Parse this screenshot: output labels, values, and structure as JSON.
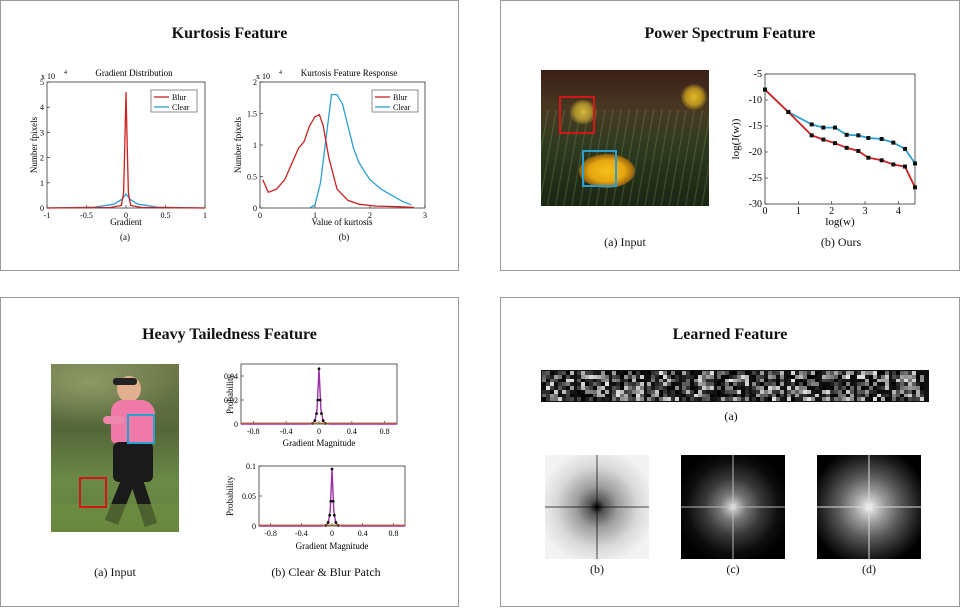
{
  "panels": {
    "kurtosis": {
      "title": "Kurtosis Feature",
      "chart_a": {
        "title": "Gradient Distribution",
        "xlabel": "Gradient",
        "ylabel": "Number fpixels",
        "scale": "x 10",
        "exp": "4",
        "xticks": [
          "-1",
          "-0.5",
          "0",
          "0.5",
          "1"
        ],
        "yticks": [
          "0",
          "1",
          "2",
          "3",
          "4",
          "5"
        ],
        "legend": [
          "Blur",
          "Clear"
        ],
        "caption": "(a)"
      },
      "chart_b": {
        "title": "Kurtosis Feature Response",
        "xlabel": "Value of kurtosis",
        "ylabel": "Number fpixels",
        "scale": "x 10",
        "exp": "4",
        "xticks": [
          "0",
          "1",
          "2",
          "3"
        ],
        "yticks": [
          "0",
          "0.5",
          "1",
          "1.5",
          "2"
        ],
        "legend": [
          "Blur",
          "Clear"
        ],
        "caption": "(b)"
      }
    },
    "power": {
      "title": "Power Spectrum Feature",
      "caption_a": "(a) Input",
      "caption_b": "(b) Ours",
      "chart": {
        "xlabel": "log(w)",
        "ylabel": "log(J(w))",
        "xticks": [
          "0",
          "1",
          "2",
          "3",
          "4"
        ],
        "yticks": [
          "-5",
          "-10",
          "-15",
          "-20",
          "-25",
          "-30"
        ]
      }
    },
    "heavy": {
      "title": "Heavy Tailedness Feature",
      "caption_a": "(a) Input",
      "caption_b": "(b) Clear & Blur Patch",
      "chart_top": {
        "xlabel": "Gradient Magnitude",
        "ylabel": "Probability",
        "xticks": [
          "-0.8",
          "-0.4",
          "0",
          "0.4",
          "0.8"
        ],
        "yticks": [
          "0",
          "0.02",
          "0.04"
        ]
      },
      "chart_bottom": {
        "xlabel": "Gradient Magnitude",
        "ylabel": "Probability",
        "xticks": [
          "-0.8",
          "-0.4",
          "0",
          "0.4",
          "0.8"
        ],
        "yticks": [
          "0",
          "0.05",
          "0.1"
        ]
      }
    },
    "learned": {
      "title": "Learned Feature",
      "caption_a": "(a)",
      "caption_b": "(b)",
      "caption_c": "(c)",
      "caption_d": "(d)"
    }
  },
  "colors": {
    "blur": "#cc1f1f",
    "clear": "#2a9fd0",
    "purple": "#9b2fa8"
  },
  "chart_data": [
    {
      "type": "line",
      "title": "Gradient Distribution",
      "xlabel": "Gradient",
      "ylabel": "Number fpixels",
      "xlim": [
        -1,
        1
      ],
      "ylim": [
        0,
        5
      ],
      "series": [
        {
          "name": "Blur",
          "x": [
            -1,
            -0.2,
            -0.06,
            -0.03,
            -0.015,
            0,
            0.015,
            0.03,
            0.06,
            0.2,
            1
          ],
          "y": [
            0,
            0.02,
            0.1,
            0.6,
            2.5,
            4.6,
            2.5,
            0.6,
            0.1,
            0.02,
            0
          ]
        },
        {
          "name": "Clear",
          "x": [
            -1,
            -0.4,
            -0.15,
            -0.05,
            0,
            0.05,
            0.15,
            0.4,
            1
          ],
          "y": [
            0,
            0.03,
            0.15,
            0.35,
            0.55,
            0.35,
            0.15,
            0.03,
            0
          ]
        }
      ]
    },
    {
      "type": "line",
      "title": "Kurtosis Feature Response",
      "xlabel": "Value of kurtosis",
      "ylabel": "Number fpixels",
      "xlim": [
        0,
        3
      ],
      "ylim": [
        0,
        2
      ],
      "series": [
        {
          "name": "Blur",
          "x": [
            0.05,
            0.15,
            0.3,
            0.45,
            0.6,
            0.7,
            0.8,
            0.9,
            1.0,
            1.08,
            1.15,
            1.25,
            1.4,
            1.6,
            1.8,
            2.1,
            2.5,
            2.8
          ],
          "y": [
            0.45,
            0.25,
            0.3,
            0.45,
            0.75,
            0.95,
            1.05,
            1.3,
            1.45,
            1.48,
            1.3,
            0.8,
            0.3,
            0.12,
            0.06,
            0.03,
            0.02,
            0.01
          ]
        },
        {
          "name": "Clear",
          "x": [
            0.9,
            1.0,
            1.1,
            1.2,
            1.3,
            1.4,
            1.5,
            1.6,
            1.7,
            1.8,
            1.9,
            2.0,
            2.2,
            2.4,
            2.6,
            2.75
          ],
          "y": [
            0.0,
            0.05,
            0.4,
            1.1,
            1.8,
            1.8,
            1.65,
            1.3,
            0.95,
            0.72,
            0.58,
            0.45,
            0.3,
            0.2,
            0.1,
            0.05
          ]
        }
      ]
    },
    {
      "type": "line",
      "xlabel": "log(w)",
      "ylabel": "log(J(w))",
      "xlim": [
        0,
        4.5
      ],
      "ylim": [
        -30,
        -5
      ],
      "series": [
        {
          "x": [
            0,
            0.7,
            1.4,
            1.75,
            2.1,
            2.45,
            2.8,
            3.1,
            3.5,
            3.85,
            4.2,
            4.5
          ],
          "y": [
            -8,
            -12.3,
            -14.7,
            -15.3,
            -15.3,
            -16.7,
            -16.8,
            -17.3,
            -17.5,
            -18.2,
            -19.4,
            -22.2
          ]
        },
        {
          "x": [
            0,
            0.7,
            1.4,
            1.75,
            2.1,
            2.45,
            2.8,
            3.1,
            3.5,
            3.85,
            4.2,
            4.5
          ],
          "y": [
            -8,
            -12.3,
            -16.8,
            -17.6,
            -18.3,
            -19.2,
            -19.8,
            -21.1,
            -21.6,
            -22.4,
            -22.8,
            -26.8
          ]
        }
      ]
    }
  ]
}
